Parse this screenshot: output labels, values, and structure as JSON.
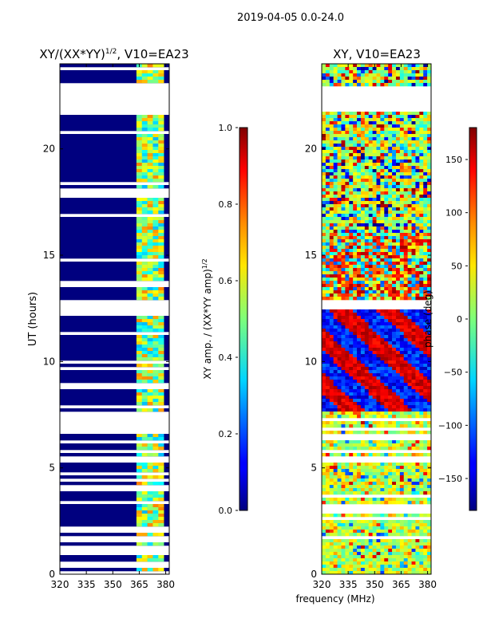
{
  "suptitle": "2019-04-05 0.0-24.0",
  "common_xlabel": "frequency (MHz)",
  "chart_data": [
    {
      "type": "heatmap",
      "id": "left",
      "title_main": "XY/(XX*YY)",
      "title_exp": "1/2",
      "title_tail": ", V10=EA23",
      "ylabel": "UT (hours)",
      "xlim": [
        320,
        382
      ],
      "ylim": [
        0,
        24
      ],
      "xticks": [
        320,
        335,
        350,
        365,
        380
      ],
      "yticks": [
        0,
        5,
        10,
        15,
        20
      ],
      "colorbar": {
        "label_main": "XY amp. / (XX*YY amp)",
        "label_exp": "1/2",
        "range": [
          0.0,
          1.0
        ],
        "ticks": [
          "0.0",
          "0.2",
          "0.4",
          "0.6",
          "0.8",
          "1.0"
        ],
        "tick_values": [
          0.0,
          0.2,
          0.4,
          0.6,
          0.8,
          1.0
        ]
      },
      "gap_ranges_hours": [
        [
          21.7,
          22.95
        ],
        [
          12.4,
          12.85
        ],
        [
          7.75,
          7.9
        ]
      ],
      "active_band_mhz": [
        362,
        378
      ]
    },
    {
      "type": "heatmap",
      "id": "right",
      "title_main": "XY, V10=EA23",
      "ylabel": "",
      "xlim": [
        320,
        382
      ],
      "ylim": [
        0,
        24
      ],
      "xticks": [
        320,
        335,
        350,
        365,
        380
      ],
      "yticks": [
        0,
        5,
        10,
        15,
        20
      ],
      "colorbar": {
        "label_main": "phase (deg)",
        "range": [
          -180,
          180
        ],
        "ticks": [
          "−150",
          "−100",
          "−50",
          "0",
          "50",
          "100",
          "150"
        ],
        "tick_values": [
          -150,
          -100,
          -50,
          0,
          50,
          100,
          150
        ]
      },
      "gap_ranges_hours": [
        [
          21.7,
          22.95
        ],
        [
          12.4,
          12.85
        ]
      ]
    }
  ]
}
